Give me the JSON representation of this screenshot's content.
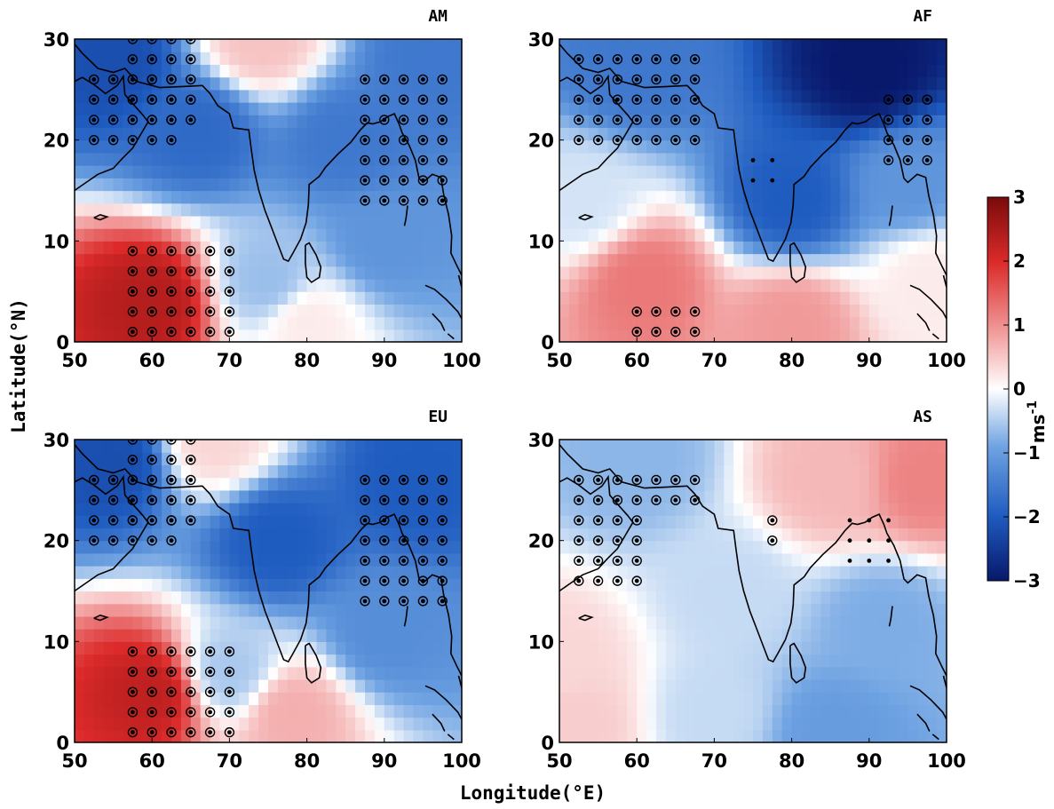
{
  "figure": {
    "xlabel": "Longitude(°E)",
    "ylabel": "Latitude(°N)",
    "colorbar": {
      "unit_main": "ms",
      "unit_exp": "-1",
      "min": -3,
      "max": 3,
      "ticks": [
        "3",
        "2",
        "1",
        "0",
        "−1",
        "−2",
        "−3"
      ],
      "colors": [
        "#08186b",
        "#1f5cc0",
        "#6fa3e2",
        "#ffffff",
        "#f19a9a",
        "#dc2a2a",
        "#7a0b0b"
      ]
    },
    "x_ticks": [
      "50",
      "60",
      "70",
      "80",
      "90",
      "100"
    ],
    "y_ticks": [
      "0",
      "10",
      "20",
      "30"
    ],
    "panels": [
      {
        "title": "AM",
        "anomaly_centers": [
          {
            "lon": 60,
            "lat": 4,
            "value": 2.4
          },
          {
            "lon": 74,
            "lat": 30,
            "value": 0.6
          },
          {
            "lon": 55,
            "lat": 28,
            "value": -2.2
          },
          {
            "lon": 66,
            "lat": 21,
            "value": -1.8
          },
          {
            "lon": 85,
            "lat": 20,
            "value": -1.6
          },
          {
            "lon": 96,
            "lat": 28,
            "value": -1.6
          },
          {
            "lon": 90,
            "lat": 10,
            "value": -1.2
          },
          {
            "lon": 75,
            "lat": 6,
            "value": -0.7
          },
          {
            "lon": 80,
            "lat": 2,
            "value": 0.2
          }
        ],
        "significance": [
          {
            "lon_range": [
              57.5,
              65
            ],
            "lat_range": [
              22,
              30
            ],
            "circled": true
          },
          {
            "lon_range": [
              52.5,
              62.5
            ],
            "lat_range": [
              20,
              26
            ],
            "circled": true
          },
          {
            "lon_range": [
              57.5,
              70
            ],
            "lat_range": [
              1,
              10.5
            ],
            "circled": true
          },
          {
            "lon_range": [
              87.5,
              97.5
            ],
            "lat_range": [
              14,
              27.5
            ],
            "circled": true
          }
        ]
      },
      {
        "title": "AF",
        "anomaly_centers": [
          {
            "lon": 61,
            "lat": 6,
            "value": 1.3
          },
          {
            "lon": 80,
            "lat": 2,
            "value": 1.0
          },
          {
            "lon": 90,
            "lat": 27,
            "value": -3.0
          },
          {
            "lon": 80,
            "lat": 14,
            "value": -2.0
          },
          {
            "lon": 60,
            "lat": 27,
            "value": -1.6
          },
          {
            "lon": 95,
            "lat": 16,
            "value": -1.2
          },
          {
            "lon": 53,
            "lat": 14,
            "value": -0.3
          },
          {
            "lon": 98,
            "lat": 6,
            "value": 0.2
          }
        ],
        "significance": [
          {
            "lon_range": [
              52.5,
              67.5
            ],
            "lat_range": [
              20,
              29.5
            ],
            "circled": true
          },
          {
            "lon_range": [
              75,
              77.5
            ],
            "lat_range": [
              16,
              18
            ],
            "circled": false
          },
          {
            "lon_range": [
              92.5,
              97.5
            ],
            "lat_range": [
              18,
              25.5
            ],
            "circled": true
          },
          {
            "lon_range": [
              60,
              67.5
            ],
            "lat_range": [
              1,
              4.5
            ],
            "circled": true
          }
        ]
      },
      {
        "title": "EU",
        "anomaly_centers": [
          {
            "lon": 60,
            "lat": 5,
            "value": 2.3
          },
          {
            "lon": 78,
            "lat": 3,
            "value": 0.8
          },
          {
            "lon": 68,
            "lat": 30,
            "value": 0.4
          },
          {
            "lon": 55,
            "lat": 28,
            "value": -2.2
          },
          {
            "lon": 76,
            "lat": 20,
            "value": -2.0
          },
          {
            "lon": 94,
            "lat": 26,
            "value": -2.0
          },
          {
            "lon": 90,
            "lat": 11,
            "value": -1.3
          },
          {
            "lon": 70,
            "lat": 7,
            "value": -0.6
          }
        ],
        "significance": [
          {
            "lon_range": [
              57.5,
              65
            ],
            "lat_range": [
              22,
              30
            ],
            "circled": true
          },
          {
            "lon_range": [
              52.5,
              62.5
            ],
            "lat_range": [
              20,
              26
            ],
            "circled": true
          },
          {
            "lon_range": [
              57.5,
              70
            ],
            "lat_range": [
              1,
              10.5
            ],
            "circled": true
          },
          {
            "lon_range": [
              87.5,
              97.5
            ],
            "lat_range": [
              14,
              27.5
            ],
            "circled": true
          }
        ]
      },
      {
        "title": "AS",
        "anomaly_centers": [
          {
            "lon": 97,
            "lat": 26,
            "value": 1.2
          },
          {
            "lon": 85,
            "lat": 26,
            "value": 0.7
          },
          {
            "lon": 50,
            "lat": 8,
            "value": 0.4
          },
          {
            "lon": 52,
            "lat": 2,
            "value": 0.5
          },
          {
            "lon": 60,
            "lat": 28,
            "value": -0.8
          },
          {
            "lon": 92,
            "lat": 12,
            "value": -0.9
          },
          {
            "lon": 85,
            "lat": 1,
            "value": -1.1
          },
          {
            "lon": 70,
            "lat": 3,
            "value": -0.4
          },
          {
            "lon": 72,
            "lat": 15,
            "value": -0.4
          }
        ],
        "significance": [
          {
            "lon_range": [
              52.5,
              60
            ],
            "lat_range": [
              16,
              26
            ],
            "circled": true
          },
          {
            "lon_range": [
              62.5,
              67.5
            ],
            "lat_range": [
              24,
              27.5
            ],
            "circled": true
          },
          {
            "lon_range": [
              77.5,
              77.5
            ],
            "lat_range": [
              20,
              22
            ],
            "circled": true
          },
          {
            "lon_range": [
              87.5,
              92.5
            ],
            "lat_range": [
              18,
              23.5
            ],
            "circled": false
          }
        ]
      }
    ]
  }
}
